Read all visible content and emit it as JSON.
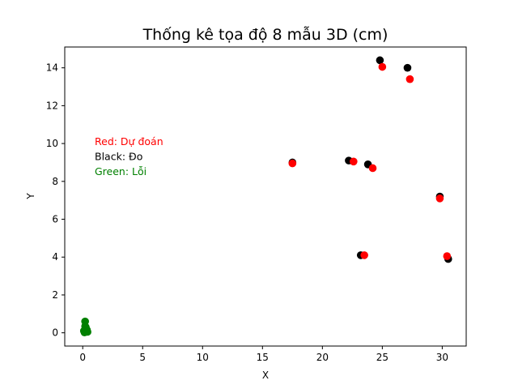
{
  "chart_data": {
    "type": "scatter",
    "title": "Thống kê tọa độ 8 mẫu 3D (cm)",
    "xlabel": "X",
    "ylabel": "Y",
    "xlim": [
      -1.5,
      32.0
    ],
    "ylim": [
      -0.7,
      15.1
    ],
    "xticks": [
      "0",
      "5",
      "10",
      "15",
      "20",
      "25",
      "30"
    ],
    "yticks": [
      "0",
      "2",
      "4",
      "6",
      "8",
      "10",
      "12",
      "14"
    ],
    "grid": false,
    "annotations": [
      {
        "text": "Red: Dự đoán",
        "color": "#ff0000"
      },
      {
        "text": "Black: Đo",
        "color": "#000000"
      },
      {
        "text": "Green: Lỗi",
        "color": "#008000"
      }
    ],
    "series": [
      {
        "color": "#000000",
        "points": [
          {
            "x": 24.8,
            "y": 14.4
          },
          {
            "x": 27.1,
            "y": 14.0
          },
          {
            "x": 17.5,
            "y": 9.0
          },
          {
            "x": 22.2,
            "y": 9.1
          },
          {
            "x": 23.8,
            "y": 8.9
          },
          {
            "x": 29.8,
            "y": 7.2
          },
          {
            "x": 23.2,
            "y": 4.1
          },
          {
            "x": 30.5,
            "y": 3.9
          }
        ]
      },
      {
        "color": "#ff0000",
        "points": [
          {
            "x": 25.0,
            "y": 14.05
          },
          {
            "x": 27.3,
            "y": 13.4
          },
          {
            "x": 17.5,
            "y": 8.95
          },
          {
            "x": 22.6,
            "y": 9.05
          },
          {
            "x": 24.2,
            "y": 8.7
          },
          {
            "x": 29.8,
            "y": 7.1
          },
          {
            "x": 23.5,
            "y": 4.1
          },
          {
            "x": 30.4,
            "y": 4.05
          }
        ]
      },
      {
        "color": "#008000",
        "points": [
          {
            "x": 0.2,
            "y": 0.6
          },
          {
            "x": 0.2,
            "y": 0.35
          },
          {
            "x": 0.3,
            "y": 0.2
          },
          {
            "x": 0.1,
            "y": 0.1
          },
          {
            "x": 0.4,
            "y": 0.05
          },
          {
            "x": 0.15,
            "y": 0.02
          },
          {
            "x": 0.35,
            "y": 0.15
          },
          {
            "x": 0.25,
            "y": 0.3
          }
        ]
      }
    ]
  }
}
